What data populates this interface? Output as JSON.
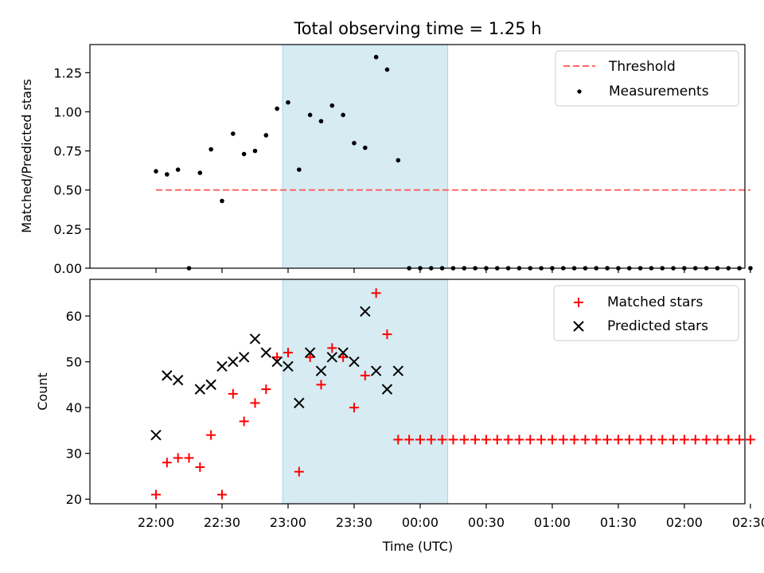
{
  "chart_data": [
    {
      "type": "scatter",
      "title": "Total observing time = 1.25 h",
      "xlabel": "",
      "ylabel": "Matched/Predicted stars",
      "xlim": [
        -12,
        107
      ],
      "ylim": [
        0.0,
        1.43
      ],
      "yticks": [
        0.0,
        0.25,
        0.5,
        0.75,
        1.0,
        1.25
      ],
      "ytick_labels": [
        "0.00",
        "0.25",
        "0.50",
        "0.75",
        "1.00",
        "1.25"
      ],
      "shaded_region": [
        23,
        53
      ],
      "shaded_color": "#add8e6",
      "grid": false,
      "legend_position": "upper right",
      "series": [
        {
          "name": "Threshold",
          "type": "line",
          "style": "dashed",
          "color": "#ff6666",
          "x": [
            0,
            108
          ],
          "y": [
            0.5,
            0.5
          ]
        },
        {
          "name": "Measurements",
          "type": "scatter",
          "marker": "dot",
          "color": "#000000",
          "x": [
            0,
            2,
            4,
            6,
            8,
            10,
            12,
            14,
            16,
            18,
            20,
            22,
            24,
            26,
            28,
            30,
            32,
            34,
            36,
            38,
            40,
            42,
            44,
            46,
            48,
            50,
            52,
            54,
            56,
            58,
            60,
            62,
            64,
            66,
            68,
            70,
            72,
            74,
            76,
            78,
            80,
            82,
            84,
            86,
            88,
            90,
            92,
            94,
            96,
            98,
            100,
            102,
            104,
            106,
            108
          ],
          "y": [
            0.62,
            0.6,
            0.63,
            0.0,
            0.61,
            0.76,
            0.43,
            0.86,
            0.73,
            0.75,
            0.85,
            1.02,
            1.06,
            0.63,
            0.98,
            0.94,
            1.04,
            0.98,
            0.8,
            0.77,
            1.35,
            1.27,
            0.69,
            0.0,
            0.0,
            0.0,
            0.0,
            0.0,
            0.0,
            0.0,
            0.0,
            0.0,
            0.0,
            0.0,
            0.0,
            0.0,
            0.0,
            0.0,
            0.0,
            0.0,
            0.0,
            0.0,
            0.0,
            0.0,
            0.0,
            0.0,
            0.0,
            0.0,
            0.0,
            0.0,
            0.0,
            0.0,
            0.0,
            0.0,
            0.0
          ]
        }
      ]
    },
    {
      "type": "scatter",
      "title": "",
      "xlabel": "Time (UTC)",
      "ylabel": "Count",
      "xlim": [
        -12,
        107
      ],
      "ylim": [
        19,
        68
      ],
      "yticks": [
        20,
        30,
        40,
        50,
        60
      ],
      "ytick_labels": [
        "20",
        "30",
        "40",
        "50",
        "60"
      ],
      "xticks": [
        0,
        12,
        24,
        36,
        48,
        60,
        72,
        84,
        96,
        108
      ],
      "xtick_labels": [
        "22:00",
        "22:30",
        "23:00",
        "23:30",
        "00:00",
        "00:30",
        "01:00",
        "01:30",
        "02:00",
        "02:30"
      ],
      "shaded_region": [
        23,
        53
      ],
      "shaded_color": "#add8e6",
      "grid": false,
      "legend_position": "upper right",
      "series": [
        {
          "name": "Matched stars",
          "type": "scatter",
          "marker": "plus",
          "color": "#ff0000",
          "x": [
            0,
            2,
            4,
            6,
            8,
            10,
            12,
            14,
            16,
            18,
            20,
            22,
            24,
            26,
            28,
            30,
            32,
            34,
            36,
            38,
            40,
            42,
            44,
            46,
            48,
            50,
            52,
            54,
            56,
            58,
            60,
            62,
            64,
            66,
            68,
            70,
            72,
            74,
            76,
            78,
            80,
            82,
            84,
            86,
            88,
            90,
            92,
            94,
            96,
            98,
            100,
            102,
            104,
            106,
            108
          ],
          "y": [
            21,
            28,
            29,
            29,
            27,
            34,
            21,
            43,
            37,
            41,
            44,
            51,
            52,
            26,
            51,
            45,
            53,
            51,
            40,
            47,
            65,
            56,
            33,
            33,
            33,
            33,
            33,
            33,
            33,
            33,
            33,
            33,
            33,
            33,
            33,
            33,
            33,
            33,
            33,
            33,
            33,
            33,
            33,
            33,
            33,
            33,
            33,
            33,
            33,
            33,
            33,
            33,
            33,
            33,
            33
          ]
        },
        {
          "name": "Predicted stars",
          "type": "scatter",
          "marker": "cross",
          "color": "#000000",
          "x": [
            0,
            2,
            4,
            8,
            10,
            12,
            14,
            16,
            18,
            20,
            22,
            24,
            26,
            28,
            30,
            32,
            34,
            36,
            38,
            40,
            42,
            44
          ],
          "y": [
            34,
            47,
            46,
            44,
            45,
            49,
            50,
            51,
            55,
            52,
            50,
            49,
            41,
            52,
            48,
            51,
            52,
            50,
            61,
            48,
            44,
            48
          ]
        }
      ]
    }
  ]
}
